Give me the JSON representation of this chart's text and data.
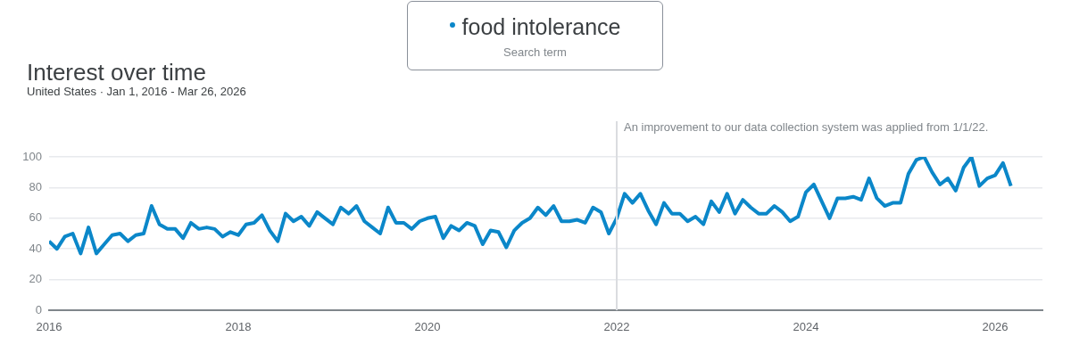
{
  "chart_data": {
    "type": "line",
    "title": "Interest over time",
    "subtitle": "United States · Jan 1, 2016 - Mar 26, 2026",
    "legend_title": "Search term",
    "legend": "top",
    "grid": "y",
    "x": [
      "2016-01",
      "2016-02",
      "2016-03",
      "2016-04",
      "2016-05",
      "2016-06",
      "2016-07",
      "2016-08",
      "2016-09",
      "2016-10",
      "2016-11",
      "2016-12",
      "2017-01",
      "2017-02",
      "2017-03",
      "2017-04",
      "2017-05",
      "2017-06",
      "2017-07",
      "2017-08",
      "2017-09",
      "2017-10",
      "2017-11",
      "2017-12",
      "2018-01",
      "2018-02",
      "2018-03",
      "2018-04",
      "2018-05",
      "2018-06",
      "2018-07",
      "2018-08",
      "2018-09",
      "2018-10",
      "2018-11",
      "2018-12",
      "2019-01",
      "2019-02",
      "2019-03",
      "2019-04",
      "2019-05",
      "2019-06",
      "2019-07",
      "2019-08",
      "2019-09",
      "2019-10",
      "2019-11",
      "2019-12",
      "2020-01",
      "2020-02",
      "2020-03",
      "2020-04",
      "2020-05",
      "2020-06",
      "2020-07",
      "2020-08",
      "2020-09",
      "2020-10",
      "2020-11",
      "2020-12",
      "2021-01",
      "2021-02",
      "2021-03",
      "2021-04",
      "2021-05",
      "2021-06",
      "2021-07",
      "2021-08",
      "2021-09",
      "2021-10",
      "2021-11",
      "2021-12",
      "2022-01",
      "2022-02",
      "2022-03",
      "2022-04",
      "2022-05",
      "2022-06",
      "2022-07",
      "2022-08",
      "2022-09",
      "2022-10",
      "2022-11",
      "2022-12",
      "2023-01",
      "2023-02",
      "2023-03",
      "2023-04",
      "2023-05",
      "2023-06",
      "2023-07",
      "2023-08",
      "2023-09",
      "2023-10",
      "2023-11",
      "2023-12",
      "2024-01",
      "2024-02",
      "2024-03",
      "2024-04",
      "2024-05",
      "2024-06",
      "2024-07",
      "2024-08",
      "2024-09",
      "2024-10",
      "2024-11",
      "2024-12",
      "2025-01",
      "2025-02",
      "2025-03",
      "2025-04",
      "2025-05",
      "2025-06",
      "2025-07",
      "2025-08",
      "2025-09",
      "2025-10",
      "2025-11",
      "2025-12",
      "2026-01",
      "2026-02",
      "2026-03"
    ],
    "series": [
      {
        "name": "food intolerance",
        "color": "#0b87c9",
        "values": [
          45,
          40,
          48,
          50,
          37,
          54,
          37,
          43,
          49,
          50,
          45,
          49,
          50,
          68,
          56,
          53,
          53,
          47,
          57,
          53,
          54,
          53,
          48,
          51,
          49,
          56,
          57,
          62,
          52,
          45,
          63,
          58,
          61,
          55,
          64,
          60,
          56,
          67,
          63,
          68,
          58,
          54,
          50,
          67,
          57,
          57,
          53,
          58,
          60,
          61,
          47,
          55,
          52,
          57,
          55,
          43,
          52,
          51,
          41,
          52,
          57,
          60,
          67,
          62,
          68,
          58,
          58,
          59,
          57,
          67,
          64,
          50,
          60,
          76,
          70,
          76,
          65,
          56,
          70,
          63,
          63,
          58,
          61,
          56,
          71,
          64,
          76,
          63,
          72,
          67,
          63,
          63,
          68,
          64,
          58,
          61,
          77,
          82,
          71,
          60,
          73,
          73,
          74,
          72,
          86,
          73,
          68,
          70,
          70,
          89,
          98,
          100,
          90,
          82,
          86,
          78,
          93,
          100,
          81,
          86,
          88,
          96,
          81
        ]
      }
    ],
    "xlim": [
      "2016-01",
      "2026-07"
    ],
    "xticks": [
      "2016",
      "2018",
      "2020",
      "2022",
      "2024",
      "2026"
    ],
    "ylim": [
      0,
      100
    ],
    "yticks": [
      0,
      20,
      40,
      60,
      80,
      100
    ],
    "ref_lines": [
      {
        "axis": "x",
        "value": "2022-01",
        "label": "An improvement to our data collection system was applied from 1/1/22.",
        "color": "#dadce0"
      }
    ]
  }
}
